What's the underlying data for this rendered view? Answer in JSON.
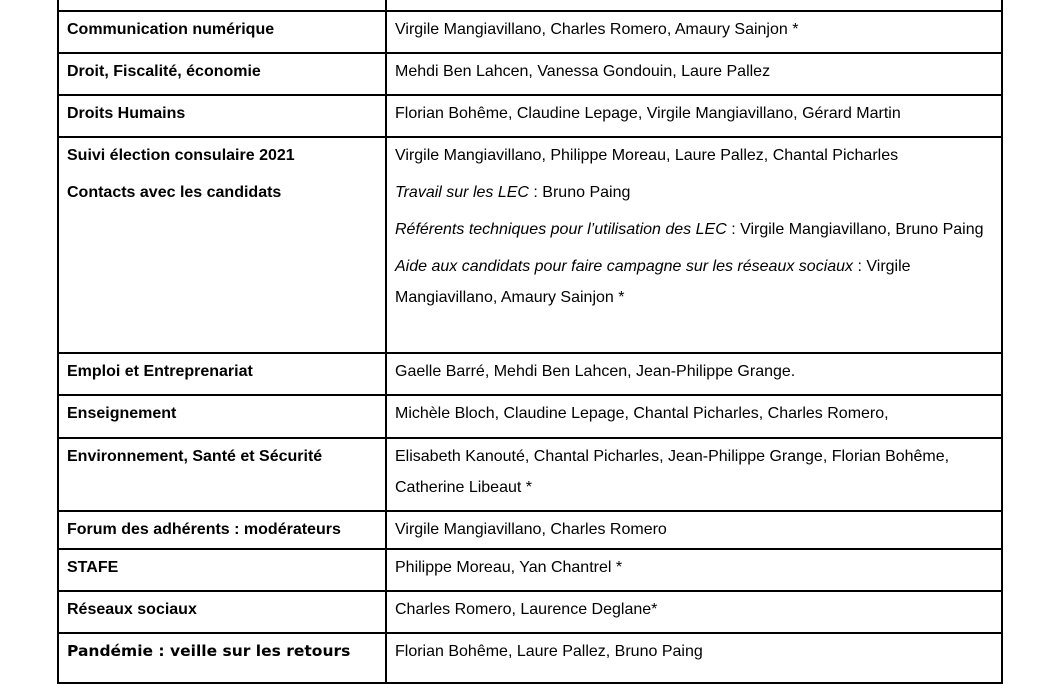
{
  "rows": [
    {
      "topic": [
        ""
      ],
      "members": [
        ""
      ]
    },
    {
      "topic": [
        "Communication numérique"
      ],
      "members": [
        "Virgile Mangiavillano, Charles Romero, Amaury Sainjon *"
      ]
    },
    {
      "topic": [
        "Droit, Fiscalité, économie"
      ],
      "members": [
        "Mehdi Ben Lahcen, Vanessa Gondouin, Laure Pallez"
      ]
    },
    {
      "topic": [
        "Droits Humains"
      ],
      "members": [
        "Florian Bohême, Claudine Lepage, Virgile Mangiavillano, Gérard Martin"
      ]
    },
    {
      "topic": [
        "Suivi élection consulaire 2021",
        "Contacts avec les candidats"
      ],
      "members": [
        "Virgile Mangiavillano, Philippe Moreau, Laure Pallez, Chantal Picharles"
      ],
      "subgroups": [
        {
          "label": "Travail sur les LEC",
          "names": " : Bruno Paing"
        },
        {
          "label": "Référents techniques pour l’utilisation des LEC",
          "names": " : Virgile Mangiavillano, Bruno Paing"
        },
        {
          "label": "Aide aux candidats pour faire campagne sur les réseaux sociaux",
          "names": " : Virgile Mangiavillano, Amaury Sainjon *"
        }
      ]
    },
    {
      "topic": [
        "Emploi et Entreprenariat"
      ],
      "members": [
        "Gaelle Barré, Mehdi Ben Lahcen, Jean-Philippe Grange."
      ]
    },
    {
      "topic": [
        "Enseignement"
      ],
      "members": [
        "Michèle Bloch, Claudine Lepage, Chantal Picharles, Charles Romero,"
      ]
    },
    {
      "topic": [
        "Environnement, Santé et Sécurité"
      ],
      "members": [
        "Elisabeth Kanouté, Chantal Picharles, Jean-Philippe Grange, Florian Bohême, Catherine Libeaut *"
      ]
    },
    {
      "topic": [
        "Forum des adhérents : modérateurs"
      ],
      "members": [
        "Virgile Mangiavillano, Charles Romero"
      ]
    },
    {
      "topic": [
        "STAFE"
      ],
      "members": [
        "Philippe Moreau, Yan Chantrel *"
      ]
    },
    {
      "topic": [
        "Réseaux sociaux"
      ],
      "members": [
        "Charles Romero, Laurence Deglane*"
      ]
    },
    {
      "topic": [
        "Pandémie : veille sur les retours"
      ],
      "members": [
        "Florian Bohême, Laure Pallez, Bruno Paing"
      ]
    }
  ]
}
